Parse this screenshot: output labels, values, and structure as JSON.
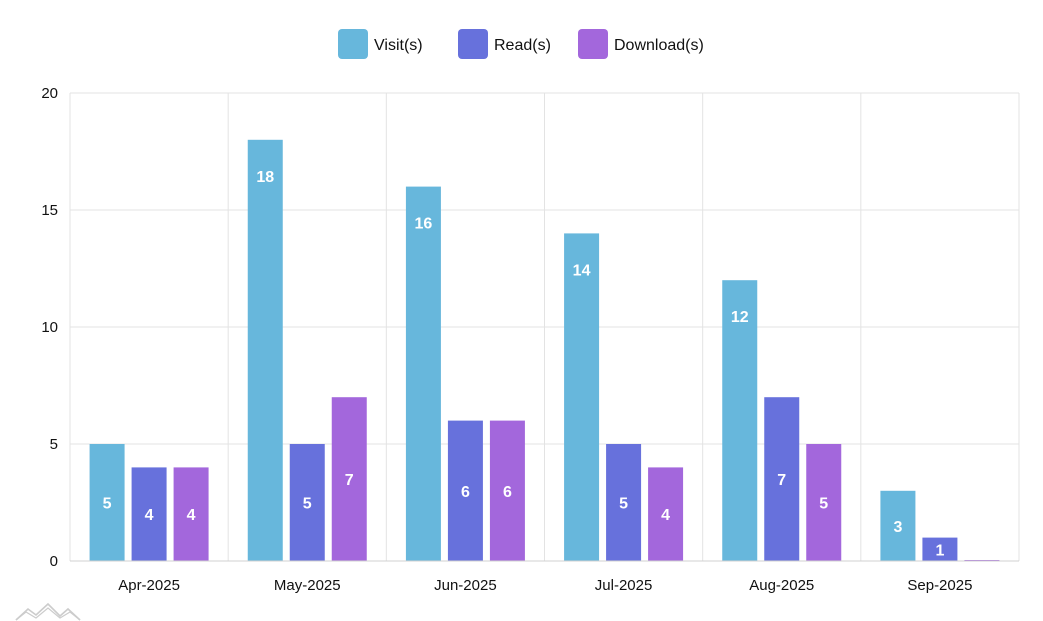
{
  "chart_data": {
    "type": "bar",
    "title": "",
    "xlabel": "",
    "ylabel": "",
    "ylim": [
      0,
      20
    ],
    "yticks": [
      0,
      5,
      10,
      15,
      20
    ],
    "grid": true,
    "legend_position": "top-center",
    "categories": [
      "Apr-2025",
      "May-2025",
      "Jun-2025",
      "Jul-2025",
      "Aug-2025",
      "Sep-2025"
    ],
    "series": [
      {
        "name": "Visit(s)",
        "color": "#67b7dc",
        "values": [
          5,
          18,
          16,
          14,
          12,
          3
        ]
      },
      {
        "name": "Read(s)",
        "color": "#6771dc",
        "values": [
          4,
          5,
          6,
          5,
          7,
          1
        ]
      },
      {
        "name": "Download(s)",
        "color": "#a367dc",
        "values": [
          4,
          7,
          6,
          4,
          5,
          0
        ]
      }
    ]
  },
  "branding": {
    "logo_icon": "amcharts-logo-icon",
    "logo_color": "#cccccc"
  }
}
